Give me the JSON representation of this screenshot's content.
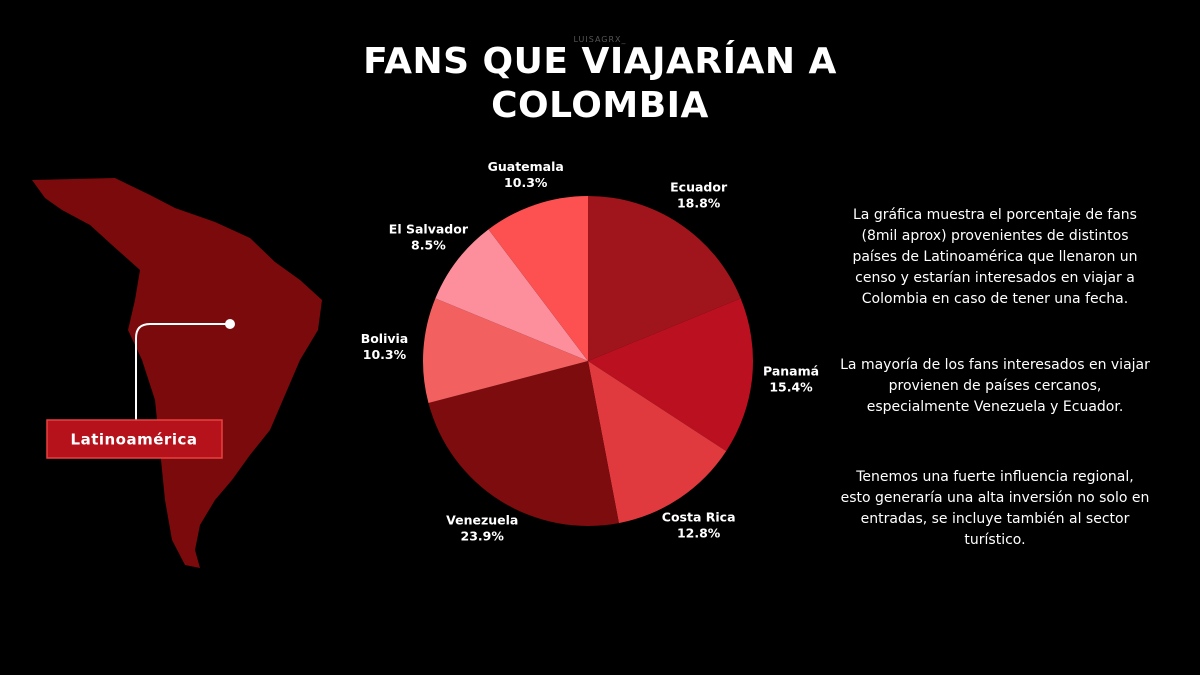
{
  "watermark": "LUISAGRX_",
  "map_label": "Latinoamérica",
  "paragraphs": [
    "La gráfica muestra el porcentaje de fans (8mil aprox) provenientes de distintos países de Latinoamérica que llenaron un censo y estarían interesados en viajar a Colombia en caso de tener una fecha.",
    "La mayoría de los fans interesados en viajar provienen de países cercanos, especialmente Venezuela y Ecuador.",
    "Tenemos una fuerte influencia regional, esto generaría una alta inversión no solo en entradas, se incluye también al sector turístico."
  ],
  "chart_data": {
    "type": "pie",
    "title": "FANS QUE VIAJARÍAN A COLOMBIA",
    "categories": [
      "Ecuador",
      "Panamá",
      "Costa Rica",
      "Venezuela",
      "Bolivia",
      "El Salvador",
      "Guatemala"
    ],
    "values": [
      18.8,
      15.4,
      12.8,
      23.9,
      10.3,
      8.5,
      10.3
    ],
    "value_labels": [
      "18.8%",
      "15.4%",
      "12.8%",
      "23.9%",
      "10.3%",
      "8.5%",
      "10.3%"
    ],
    "colors": [
      "#a0151c",
      "#bb101f",
      "#e03a3e",
      "#7d0c0e",
      "#f26060",
      "#fd8f9c",
      "#fd5050"
    ]
  }
}
